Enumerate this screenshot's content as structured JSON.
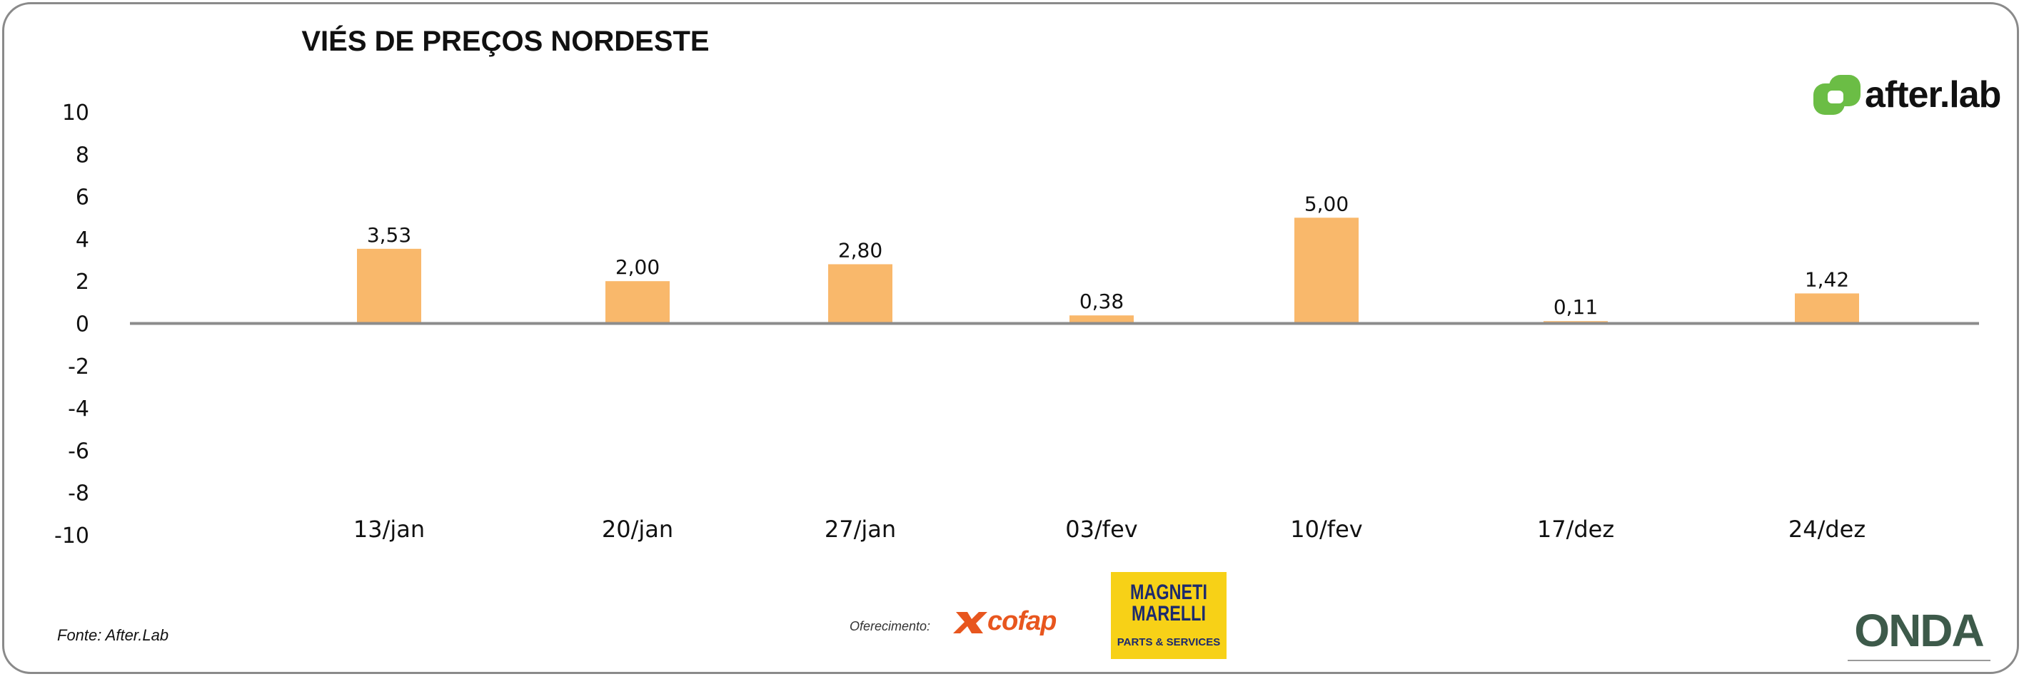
{
  "chart_data": {
    "type": "bar",
    "title": "VIÉS DE PREÇOS NORDESTE",
    "categories": [
      "13/jan",
      "20/jan",
      "27/jan",
      "03/fev",
      "10/fev",
      "17/dez",
      "24/dez"
    ],
    "values": [
      3.53,
      2.0,
      2.8,
      0.38,
      5.0,
      0.11,
      1.42
    ],
    "value_labels": [
      "3,53",
      "2,00",
      "2,80",
      "0,38",
      "5,00",
      "0,11",
      "1,42"
    ],
    "ylim": [
      -10,
      10
    ],
    "yticks": [
      10,
      8,
      6,
      4,
      2,
      0,
      -2,
      -4,
      -6,
      -8,
      -10
    ],
    "bar_color": "#f9b86b",
    "grid": false,
    "legend": "none"
  },
  "source": "Fonte: After.Lab",
  "offer_label": "Oferecimento:",
  "logos": {
    "afterlab": "after.lab",
    "cofap": "cofap",
    "magneti_line1": "MAGNETI",
    "magneti_line2": "MARELLI",
    "magneti_tag": "PARTS & SERVICES",
    "onda": "ONDA"
  },
  "colors": {
    "accent_green": "#6bbd45",
    "cofap_orange": "#e8561e",
    "magneti_yellow": "#f7d117",
    "magneti_blue": "#1c2a6e"
  }
}
